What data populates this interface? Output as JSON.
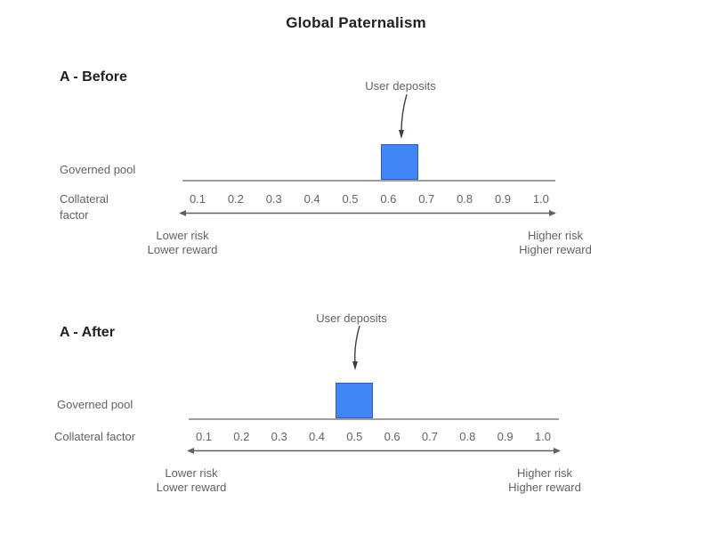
{
  "title": "Global Paternalism",
  "colors": {
    "deposit_box_fill": "#4285f4",
    "deposit_box_border": "#2b5bc7",
    "baseline": "#9e9e9e",
    "axis_arrow": "#616161",
    "text_gray": "#5f6368",
    "heading_text": "#202124"
  },
  "sections": [
    {
      "heading": "A - Before",
      "deposit_label": "User deposits",
      "pool_label": "Governed pool",
      "axis_label_line1": "Collateral",
      "axis_label_line2": "factor",
      "ticks": [
        "0.1",
        "0.2",
        "0.3",
        "0.4",
        "0.5",
        "0.6",
        "0.7",
        "0.8",
        "0.9",
        "1.0"
      ],
      "deposit_center": 0.63,
      "left_caption_line1": "Lower risk",
      "left_caption_line2": "Lower reward",
      "right_caption_line1": "Higher risk",
      "right_caption_line2": "Higher reward"
    },
    {
      "heading": "A - After",
      "deposit_label": "User deposits",
      "pool_label": "Governed pool",
      "axis_label_line1": "Collateral factor",
      "axis_label_line2": "",
      "ticks": [
        "0.1",
        "0.2",
        "0.3",
        "0.4",
        "0.5",
        "0.6",
        "0.7",
        "0.8",
        "0.9",
        "1.0"
      ],
      "deposit_center": 0.5,
      "left_caption_line1": "Lower risk",
      "left_caption_line2": "Lower reward",
      "right_caption_line1": "Higher risk",
      "right_caption_line2": "Higher reward"
    }
  ],
  "chart_data": [
    {
      "type": "bar",
      "title": "A - Before",
      "xlabel": "Collateral factor",
      "x_ticks": [
        0.1,
        0.2,
        0.3,
        0.4,
        0.5,
        0.6,
        0.7,
        0.8,
        0.9,
        1.0
      ],
      "xlim": [
        0.1,
        1.0
      ],
      "series": [
        {
          "name": "User deposits",
          "x_center": 0.63
        }
      ],
      "axis_caption_left": "Lower risk / Lower reward",
      "axis_caption_right": "Higher risk / Higher reward"
    },
    {
      "type": "bar",
      "title": "A - After",
      "xlabel": "Collateral factor",
      "x_ticks": [
        0.1,
        0.2,
        0.3,
        0.4,
        0.5,
        0.6,
        0.7,
        0.8,
        0.9,
        1.0
      ],
      "xlim": [
        0.1,
        1.0
      ],
      "series": [
        {
          "name": "User deposits",
          "x_center": 0.5
        }
      ],
      "axis_caption_left": "Lower risk / Lower reward",
      "axis_caption_right": "Higher risk / Higher reward"
    }
  ]
}
